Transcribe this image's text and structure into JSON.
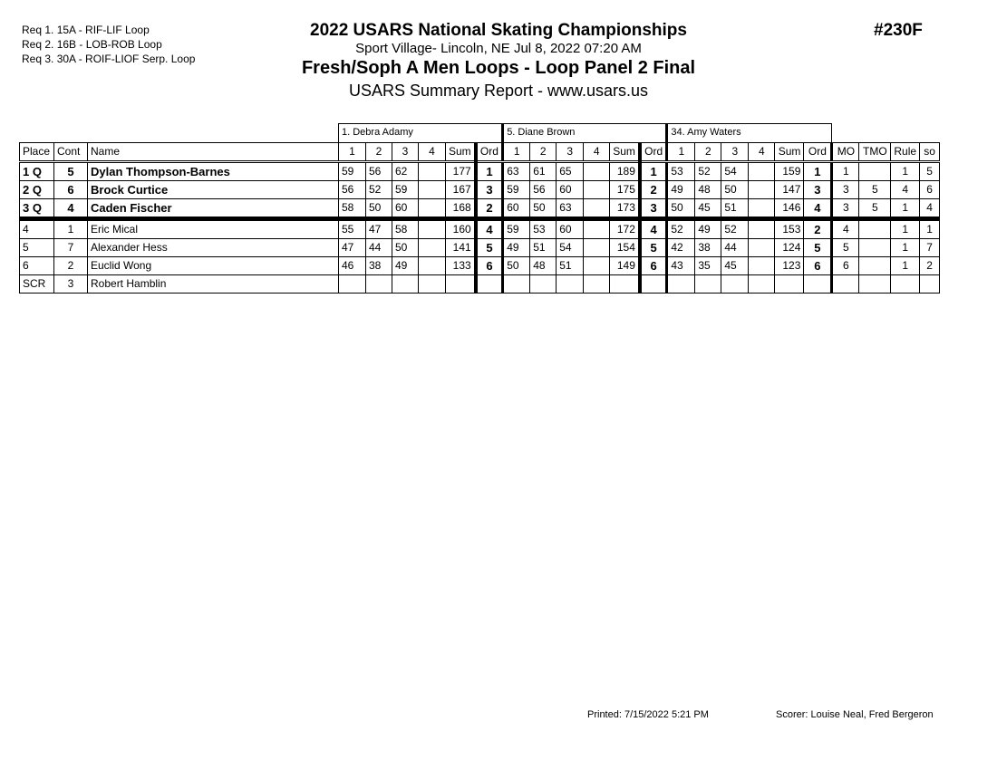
{
  "requirements": [
    "Req  1.  15A - RIF-LIF Loop",
    "Req  2.  16B - LOB-ROB Loop",
    "Req  3.  30A - ROIF-LIOF Serp. Loop"
  ],
  "header": {
    "title": "2022 USARS National Skating Championships",
    "venue": "Sport Village- Lincoln, NE  Jul 8, 2022  07:20 AM",
    "event": "Fresh/Soph A Men Loops - Loop Panel 2 Final",
    "report": "USARS Summary Report - www.usars.us",
    "event_number": "#230F"
  },
  "judges": [
    "1.  Debra Adamy",
    "5.  Diane Brown",
    "34.  Amy Waters"
  ],
  "columns": {
    "place": "Place",
    "cont": "Cont",
    "name": "Name",
    "judge_cols": [
      "1",
      "2",
      "3",
      "4",
      "Sum",
      "Ord"
    ],
    "mo": "MO",
    "tmo": "TMO",
    "rule": "Rule",
    "so": "so"
  },
  "rows": [
    {
      "place": "1 Q",
      "cont": "5",
      "name": "Dylan Thompson-Barnes",
      "bold": true,
      "scores": [
        [
          "59",
          "56",
          "62",
          "",
          "177",
          "1"
        ],
        [
          "63",
          "61",
          "65",
          "",
          "189",
          "1"
        ],
        [
          "53",
          "52",
          "54",
          "",
          "159",
          "1"
        ]
      ],
      "mo": "1",
      "tmo": "",
      "rule": "1",
      "so": "5"
    },
    {
      "place": "2 Q",
      "cont": "6",
      "name": "Brock Curtice",
      "bold": true,
      "scores": [
        [
          "56",
          "52",
          "59",
          "",
          "167",
          "3"
        ],
        [
          "59",
          "56",
          "60",
          "",
          "175",
          "2"
        ],
        [
          "49",
          "48",
          "50",
          "",
          "147",
          "3"
        ]
      ],
      "mo": "3",
      "tmo": "5",
      "rule": "4",
      "so": "6"
    },
    {
      "place": "3 Q",
      "cont": "4",
      "name": "Caden Fischer",
      "bold": true,
      "scores": [
        [
          "58",
          "50",
          "60",
          "",
          "168",
          "2"
        ],
        [
          "60",
          "50",
          "63",
          "",
          "173",
          "3"
        ],
        [
          "50",
          "45",
          "51",
          "",
          "146",
          "4"
        ]
      ],
      "mo": "3",
      "tmo": "5",
      "rule": "1",
      "so": "4"
    },
    {
      "place": "4",
      "cont": "1",
      "name": "Eric Mical",
      "bold": false,
      "scores": [
        [
          "55",
          "47",
          "58",
          "",
          "160",
          "4"
        ],
        [
          "59",
          "53",
          "60",
          "",
          "172",
          "4"
        ],
        [
          "52",
          "49",
          "52",
          "",
          "153",
          "2"
        ]
      ],
      "mo": "4",
      "tmo": "",
      "rule": "1",
      "so": "1"
    },
    {
      "place": "5",
      "cont": "7",
      "name": "Alexander Hess",
      "bold": false,
      "scores": [
        [
          "47",
          "44",
          "50",
          "",
          "141",
          "5"
        ],
        [
          "49",
          "51",
          "54",
          "",
          "154",
          "5"
        ],
        [
          "42",
          "38",
          "44",
          "",
          "124",
          "5"
        ]
      ],
      "mo": "5",
      "tmo": "",
      "rule": "1",
      "so": "7"
    },
    {
      "place": "6",
      "cont": "2",
      "name": "Euclid Wong",
      "bold": false,
      "scores": [
        [
          "46",
          "38",
          "49",
          "",
          "133",
          "6"
        ],
        [
          "50",
          "48",
          "51",
          "",
          "149",
          "6"
        ],
        [
          "43",
          "35",
          "45",
          "",
          "123",
          "6"
        ]
      ],
      "mo": "6",
      "tmo": "",
      "rule": "1",
      "so": "2"
    },
    {
      "place": "SCR",
      "cont": "3",
      "name": "Robert Hamblin",
      "bold": false,
      "scores": [
        [
          "",
          "",
          "",
          "",
          "",
          ""
        ],
        [
          "",
          "",
          "",
          "",
          "",
          ""
        ],
        [
          "",
          "",
          "",
          "",
          "",
          ""
        ]
      ],
      "mo": "",
      "tmo": "",
      "rule": "",
      "so": ""
    }
  ],
  "footer": {
    "printed": "Printed:  7/15/2022  5:21 PM",
    "scorer": "Scorer:   Louise Neal, Fred Bergeron"
  }
}
